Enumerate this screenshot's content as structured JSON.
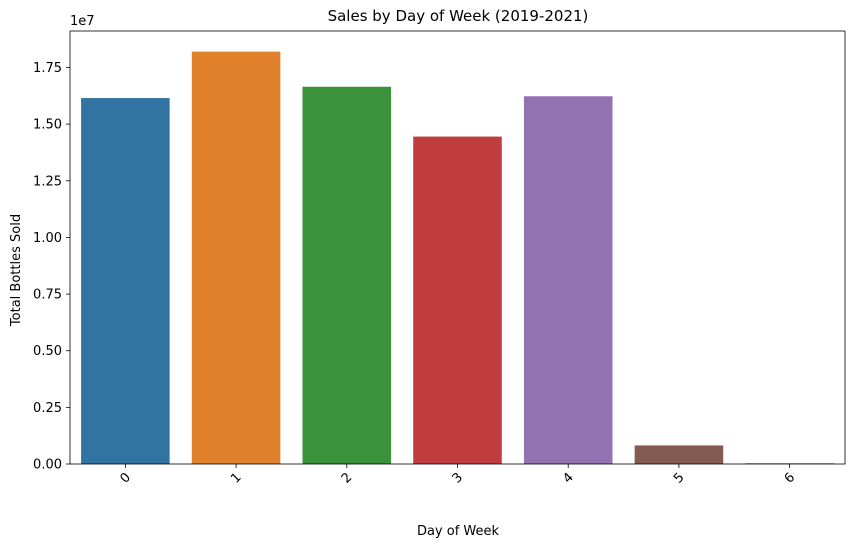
{
  "chart_data": {
    "type": "bar",
    "title": "Sales by Day of Week (2019-2021)",
    "xlabel": "Day of Week",
    "ylabel": "Total Bottles Sold",
    "offset_label": "1e7",
    "categories": [
      "0",
      "1",
      "2",
      "3",
      "4",
      "5",
      "6"
    ],
    "values": [
      16150000,
      18200000,
      16650000,
      14450000,
      16230000,
      820000,
      40000
    ],
    "ylim": [
      0,
      19110000
    ],
    "y_ticks": [
      0,
      2500000,
      5000000,
      7500000,
      10000000,
      12500000,
      15000000,
      17500000
    ],
    "y_tick_labels": [
      "0.00",
      "0.25",
      "0.50",
      "0.75",
      "1.00",
      "1.25",
      "1.50",
      "1.75"
    ],
    "x_tick_rotation": "-45",
    "colors": [
      "#3274a1",
      "#e1812c",
      "#3a923a",
      "#c03d3e",
      "#9372b2",
      "#845b53",
      "#d684bd"
    ],
    "grid": false,
    "legend": "none"
  }
}
